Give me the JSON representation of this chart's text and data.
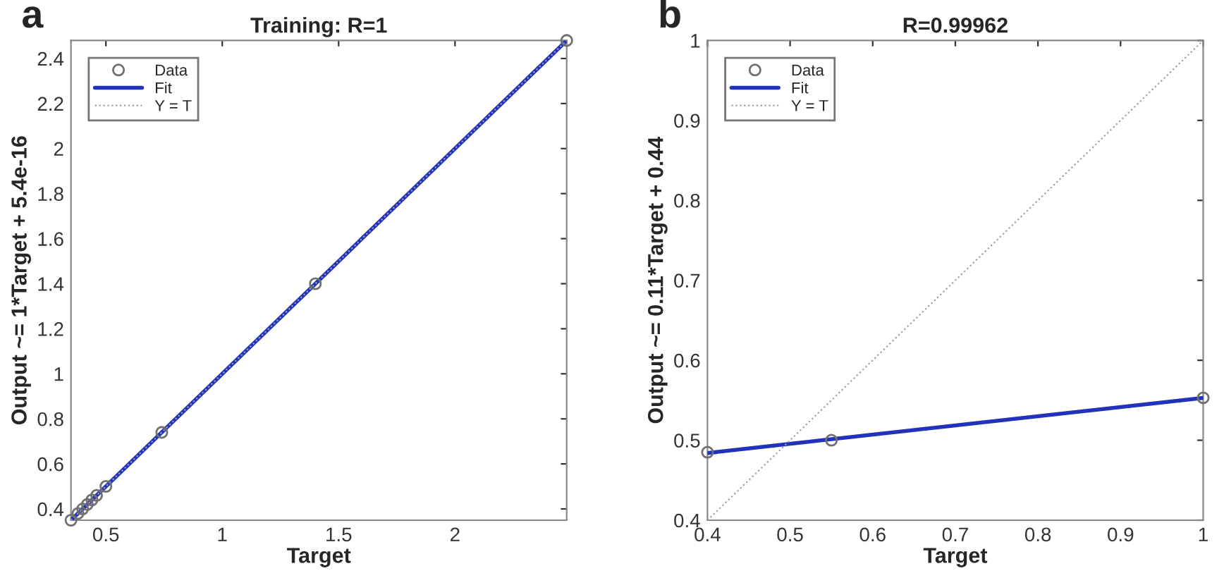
{
  "chart_data": [
    {
      "type": "scatter",
      "title": "Training: R=1",
      "xlabel": "Target",
      "ylabel": "Output ~= 1*Target + 5.4e-16",
      "annotations": [
        "a"
      ],
      "xlim": [
        0.35,
        2.48
      ],
      "ylim": [
        0.35,
        2.48
      ],
      "xticks": [
        0.5,
        1,
        1.5,
        2
      ],
      "yticks": [
        0.4,
        0.6,
        0.8,
        1,
        1.2,
        1.4,
        1.6,
        1.8,
        2,
        2.2,
        2.4
      ],
      "grid": false,
      "legend": "top left",
      "series": [
        {
          "name": "Data",
          "marker": "circle",
          "color": "#707070",
          "x": [
            0.35,
            0.38,
            0.4,
            0.42,
            0.44,
            0.46,
            0.5,
            0.74,
            1.4,
            2.48
          ],
          "values": [
            0.35,
            0.38,
            0.4,
            0.42,
            0.44,
            0.46,
            0.5,
            0.74,
            1.4,
            2.48
          ]
        },
        {
          "name": "Fit",
          "type": "line",
          "line_style": "solid",
          "color": "#2233bb",
          "x": [
            0.35,
            2.48
          ],
          "values": [
            0.35,
            2.48
          ]
        },
        {
          "name": "Y = T",
          "type": "line",
          "line_style": "dotted",
          "color": "#a0a0a0",
          "x": [
            0.35,
            2.48
          ],
          "values": [
            0.35,
            2.48
          ]
        }
      ]
    },
    {
      "type": "scatter",
      "title": "R=0.99962",
      "xlabel": "Target",
      "ylabel": "Output ~= 0.11*Target + 0.44",
      "annotations": [
        "b"
      ],
      "xlim": [
        0.4,
        1
      ],
      "ylim": [
        0.4,
        1
      ],
      "xticks": [
        0.4,
        0.5,
        0.6,
        0.7,
        0.8,
        0.9,
        1
      ],
      "yticks": [
        0.4,
        0.5,
        0.6,
        0.7,
        0.8,
        0.9,
        1
      ],
      "grid": false,
      "legend": "top left",
      "series": [
        {
          "name": "Data",
          "marker": "circle",
          "color": "#707070",
          "x": [
            0.4,
            0.55,
            1
          ],
          "values": [
            0.485,
            0.5,
            0.553
          ]
        },
        {
          "name": "Fit",
          "type": "line",
          "line_style": "solid",
          "color": "#2233bb",
          "x": [
            0.4,
            1
          ],
          "values": [
            0.484,
            0.553
          ]
        },
        {
          "name": "Y = T",
          "type": "line",
          "line_style": "dotted",
          "color": "#a0a0a0",
          "x": [
            0.4,
            1
          ],
          "values": [
            0.4,
            1
          ]
        }
      ]
    }
  ]
}
